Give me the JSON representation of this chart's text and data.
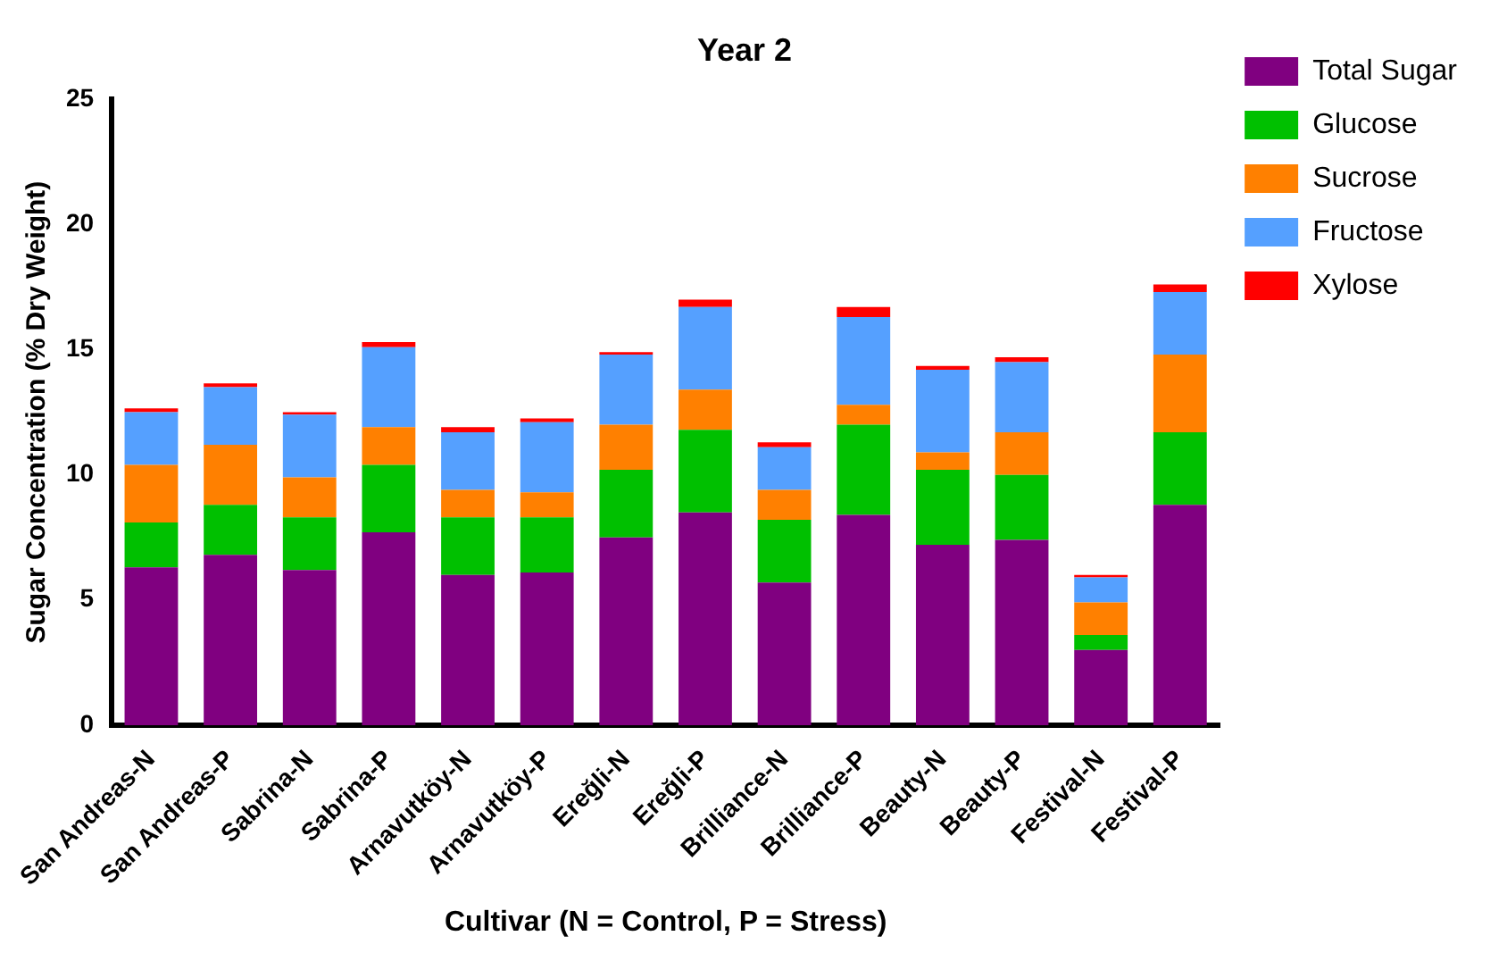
{
  "chart_data": {
    "type": "bar",
    "title": "Year 2",
    "xlabel": "Cultivar (N = Control, P = Stress)",
    "ylabel": "Sugar Concentration (% Dry Weight)",
    "categories": [
      "San Andreas-N",
      "San Andreas-P",
      "Sabrina-N",
      "Sabrina-P",
      "Arnavutköy-N",
      "Arnavutköy-P",
      "Ereğli-N",
      "Ereğli-P",
      "Brilliance-N",
      "Brilliance-P",
      "Beauty-N",
      "Beauty-P",
      "Festival-N",
      "Festival-P"
    ],
    "stacked": true,
    "ylim": [
      0,
      25
    ],
    "yticks": [
      0,
      5,
      10,
      15,
      20,
      25
    ],
    "grid": false,
    "legend": "top right",
    "series": [
      {
        "name": "Total Sugar",
        "color": "#800080",
        "values": [
          6.3,
          6.8,
          6.2,
          7.7,
          6.0,
          6.1,
          7.5,
          8.5,
          5.7,
          8.4,
          7.2,
          7.4,
          3.0,
          8.8
        ]
      },
      {
        "name": "Glucose",
        "color": "#00c000",
        "values": [
          1.8,
          2.0,
          2.1,
          2.7,
          2.3,
          2.2,
          2.7,
          3.3,
          2.5,
          3.6,
          3.0,
          2.6,
          0.6,
          2.9
        ]
      },
      {
        "name": "Sucrose",
        "color": "#ff8000",
        "values": [
          2.3,
          2.4,
          1.6,
          1.5,
          1.1,
          1.0,
          1.8,
          1.6,
          1.2,
          0.8,
          0.7,
          1.7,
          1.3,
          3.1
        ]
      },
      {
        "name": "Fructose",
        "color": "#55a0ff",
        "values": [
          2.1,
          2.3,
          2.5,
          3.2,
          2.3,
          2.8,
          2.8,
          3.3,
          1.7,
          3.5,
          3.3,
          2.8,
          1.0,
          2.5
        ]
      },
      {
        "name": "Xylose",
        "color": "#ff0000",
        "values": [
          0.15,
          0.15,
          0.1,
          0.2,
          0.2,
          0.15,
          0.1,
          0.3,
          0.2,
          0.4,
          0.15,
          0.2,
          0.1,
          0.3
        ]
      }
    ]
  }
}
